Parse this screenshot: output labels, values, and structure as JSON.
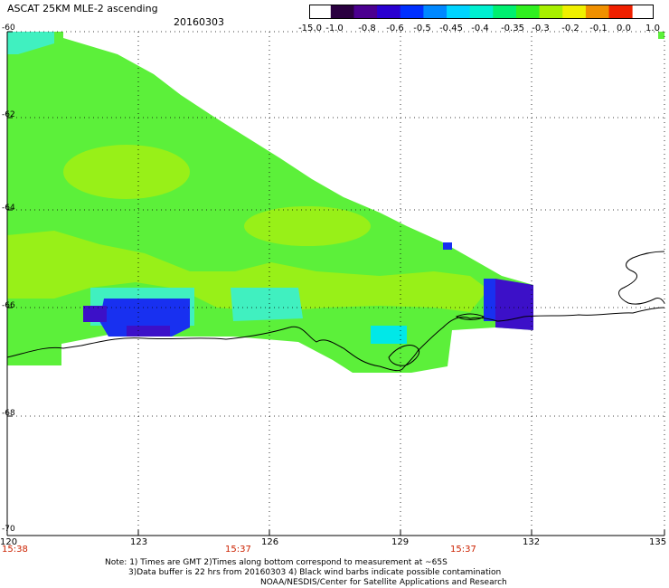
{
  "header": {
    "title": "ASCAT 25KM MLE-2 ascending",
    "date": "20160303"
  },
  "colorbar": {
    "labels": [
      "-15.0",
      "-1.0",
      "-0.8",
      "-0.6",
      "-0.5",
      "-0.45",
      "-0.4",
      "-0.35",
      "-0.3",
      "-0.2",
      "-0.1",
      "0.0",
      "1.0"
    ],
    "colors": [
      "#2a0040",
      "#4b0090",
      "#2a00d0",
      "#0030ff",
      "#0088ff",
      "#00d4ff",
      "#00f0d0",
      "#00f070",
      "#30f020",
      "#a8f000",
      "#f0f000",
      "#f09000",
      "#f02000"
    ]
  },
  "map": {
    "lat_labels": [
      "-60",
      "-62",
      "-64",
      "-66",
      "-68",
      "-70"
    ],
    "lon_labels": [
      "120",
      "123",
      "126",
      "129",
      "132",
      "135"
    ],
    "time_labels": [
      "15:38",
      "15:37",
      "15:37"
    ],
    "colors": {
      "green": "#5cf03a",
      "lime": "#98f018",
      "cyan": "#40f0c0",
      "aqua": "#00e8e8",
      "blue": "#1830f0",
      "indigo": "#3c10c8",
      "coast": "#000000"
    }
  },
  "footer": {
    "note_line1": "Note: 1) Times are GMT 2)Times along bottom correspond to measurement at ~65S",
    "note_line2": "3)Data buffer is 22 hrs from 20160303 4) Black wind barbs indicate possible contamination",
    "note_line3": "NOAA/NESDIS/Center for Satellite Applications and Research"
  }
}
